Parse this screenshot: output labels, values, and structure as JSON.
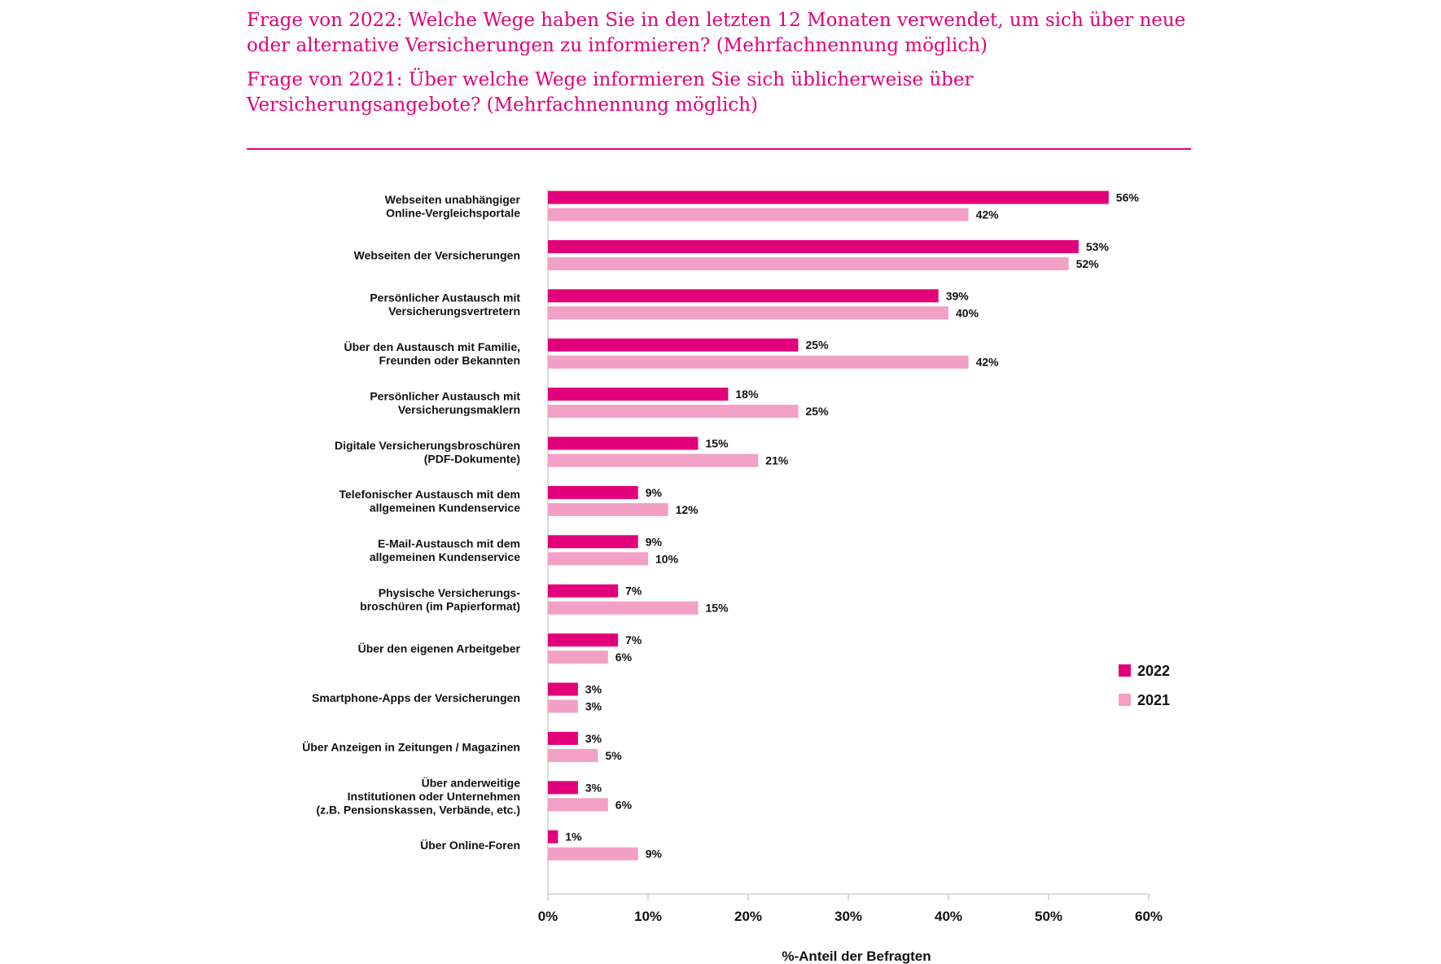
{
  "heading": {
    "question_2022": "Frage von 2022: Welche Wege haben Sie in den letzten 12 Monaten verwendet, um sich über neue oder alternative Versicherungen zu informieren? (Mehrfachnennung möglich)",
    "question_2021": "Frage von 2021: Über welche Wege informieren Sie sich üblicherweise über Versicherungsangebote? (Mehrfachnennung möglich)"
  },
  "colors": {
    "accent": "#e2007a",
    "series_2022": "#e2007a",
    "series_2021": "#f2a0c6",
    "text": "#111111",
    "axis": "#cfcfcf"
  },
  "chart_data": {
    "type": "bar",
    "orientation": "horizontal",
    "categories": [
      [
        "Webseiten unabhängiger",
        "Online-Vergleichsportale"
      ],
      [
        "Webseiten der Versicherungen"
      ],
      [
        "Persönlicher Austausch mit",
        "Versicherungsvertretern"
      ],
      [
        "Über den Austausch mit Familie,",
        "Freunden oder Bekannten"
      ],
      [
        "Persönlicher Austausch mit",
        "Versicherungsmaklern"
      ],
      [
        "Digitale Versicherungsbroschüren",
        "(PDF-Dokumente)"
      ],
      [
        "Telefonischer Austausch mit dem",
        "allgemeinen Kundenservice"
      ],
      [
        "E-Mail-Austausch mit dem",
        "allgemeinen Kundenservice"
      ],
      [
        "Physische Versicherungs-",
        "broschüren (im Papierformat)"
      ],
      [
        "Über den eigenen Arbeitgeber"
      ],
      [
        "Smartphone-Apps der Versicherungen"
      ],
      [
        "Über Anzeigen in Zeitungen / Magazinen"
      ],
      [
        "Über anderweitige",
        "Institutionen oder Unternehmen",
        "(z.B. Pensionskassen, Verbände, etc.)"
      ],
      [
        "Über Online-Foren"
      ]
    ],
    "series": [
      {
        "name": "2022",
        "values": [
          56,
          53,
          39,
          25,
          18,
          15,
          9,
          9,
          7,
          7,
          3,
          3,
          3,
          1
        ]
      },
      {
        "name": "2021",
        "values": [
          42,
          52,
          40,
          42,
          25,
          21,
          12,
          10,
          15,
          6,
          3,
          5,
          6,
          9
        ]
      }
    ],
    "value_suffix": "%",
    "xlim": [
      0,
      60
    ],
    "xticks": [
      "0%",
      "10%",
      "20%",
      "30%",
      "40%",
      "50%",
      "60%"
    ],
    "xlabel": "%-Anteil der Befragten",
    "legend_position": "right"
  }
}
